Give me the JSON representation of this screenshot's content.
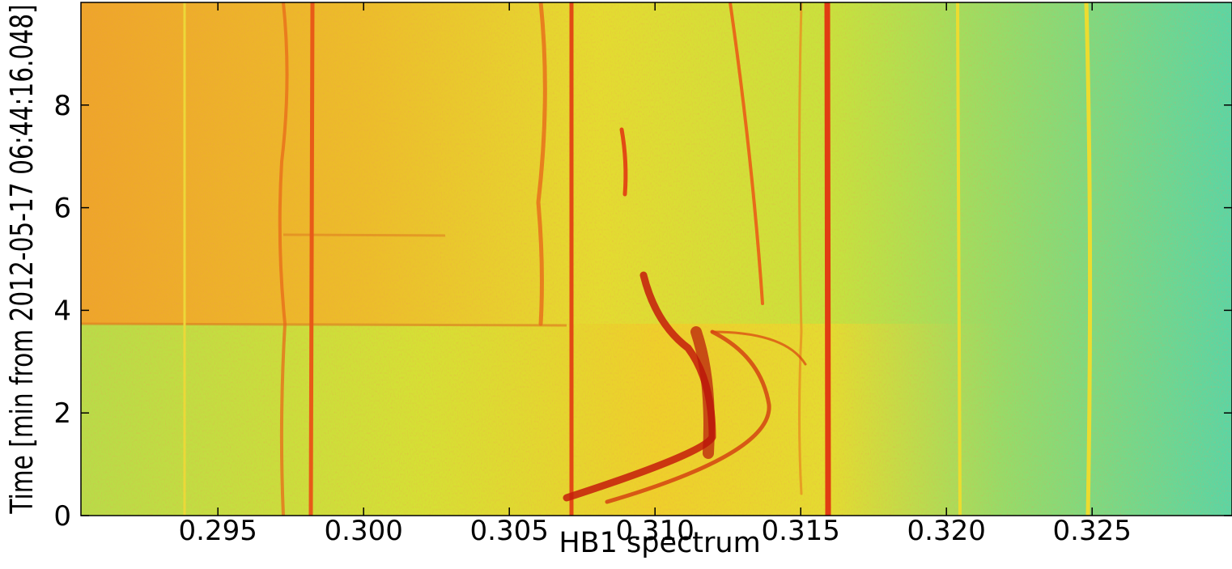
{
  "chart_data": {
    "type": "spectrogram",
    "x_label": "HB1 spectrum",
    "y_label": "Time [min from 2012-05-17 06:44:16.048]",
    "xlim": [
      0.2903,
      0.3298
    ],
    "ylim": [
      0,
      10
    ],
    "xticks": [
      0.295,
      {
        "value": 0.3,
        "label": "0.300"
      },
      0.305,
      {
        "value": 0.31,
        "label": "0.310"
      },
      0.315,
      {
        "value": 0.32,
        "label": "0.320"
      },
      0.325
    ],
    "yticks": [
      0,
      2,
      4,
      6,
      8
    ]
  }
}
